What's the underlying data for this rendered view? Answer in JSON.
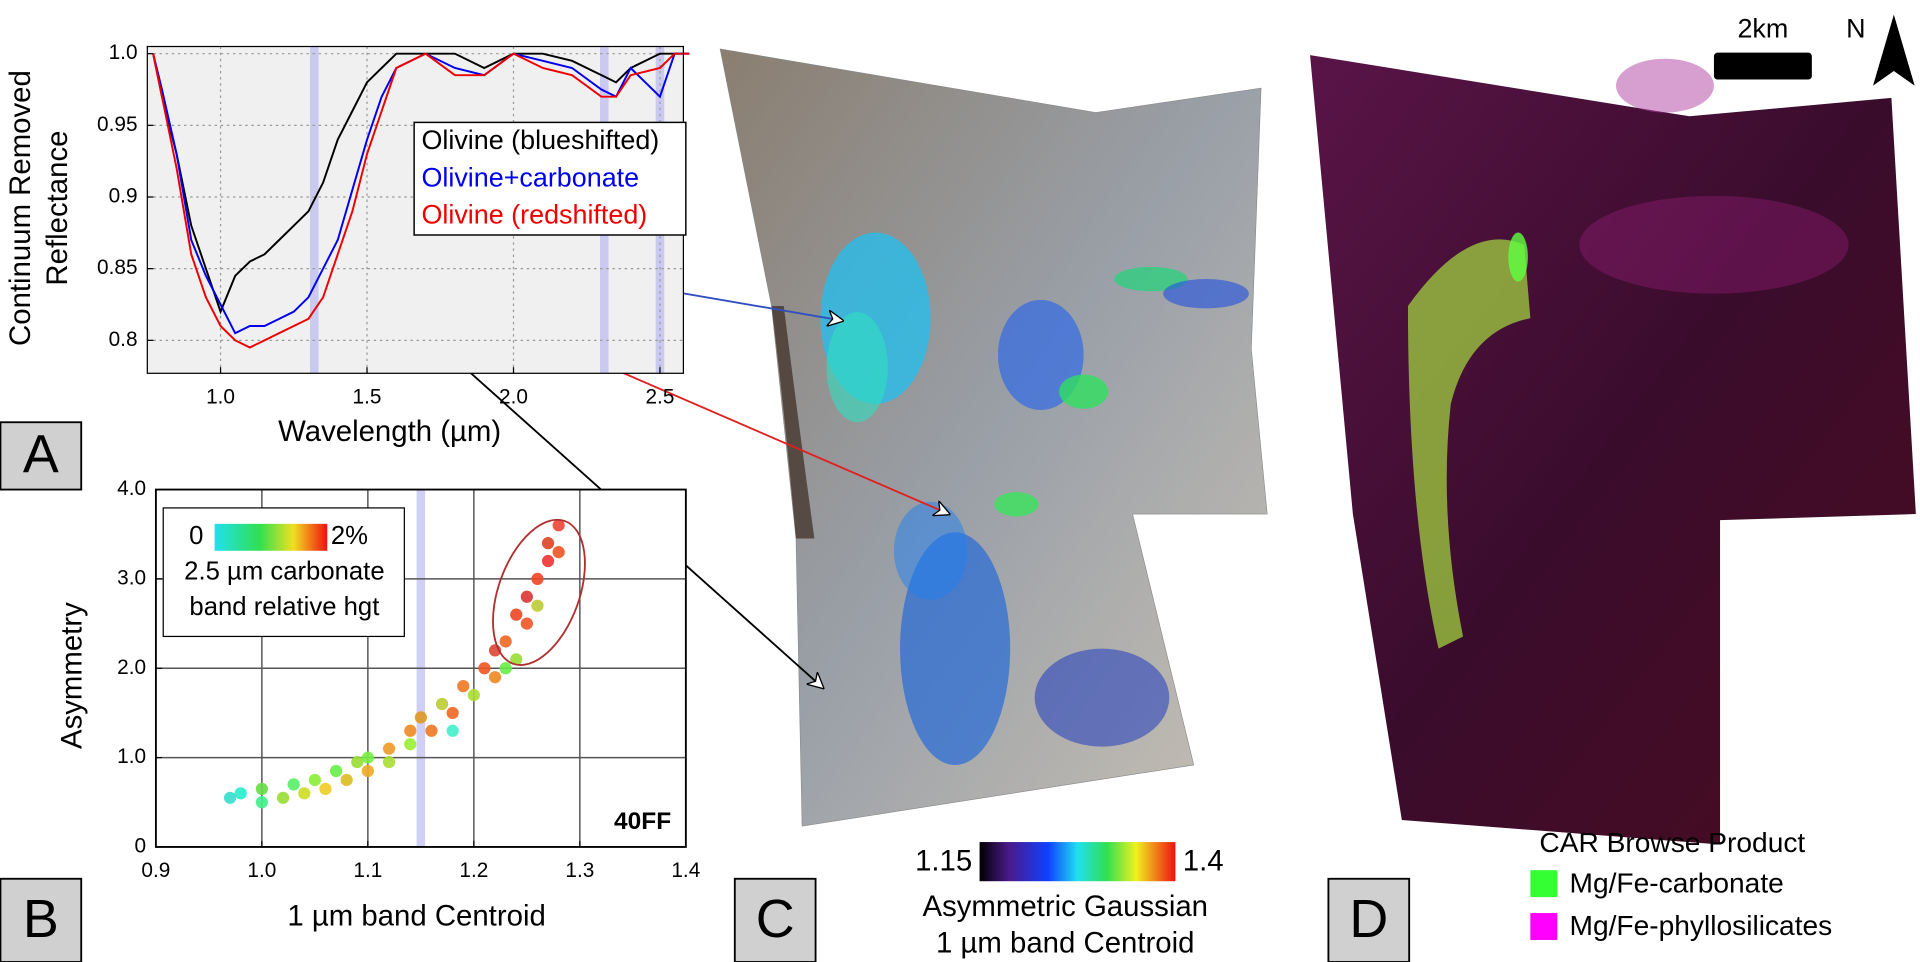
{
  "chart_data": [
    {
      "type": "line",
      "panel_label": "A",
      "ylabel_lines": [
        "Continuum Removed",
        "Reflectance"
      ],
      "xlabel": "Wavelength (µm)",
      "xlim": [
        0.75,
        2.58
      ],
      "xticks": [
        {
          "value": 1,
          "label": "1.0"
        },
        1.5,
        {
          "value": 2,
          "label": "2.0"
        },
        2.5
      ],
      "ylim": [
        0.777,
        1.005
      ],
      "yticks": [
        0.8,
        0.85,
        0.9,
        0.95,
        {
          "value": 1,
          "label": "1.0"
        }
      ],
      "grid": true,
      "bands": [
        1.32,
        2.31,
        2.5
      ],
      "x": [
        0.77,
        0.8,
        0.85,
        0.9,
        0.95,
        1.0,
        1.05,
        1.1,
        1.15,
        1.2,
        1.25,
        1.3,
        1.35,
        1.4,
        1.45,
        1.5,
        1.55,
        1.6,
        1.7,
        1.8,
        1.9,
        2.0,
        2.1,
        2.2,
        2.3,
        2.35,
        2.4,
        2.5,
        2.55,
        2.6
      ],
      "series": [
        {
          "name": "Olivine (blueshifted)",
          "color": "#000000",
          "values": [
            1.0,
            0.97,
            0.93,
            0.88,
            0.85,
            0.82,
            0.845,
            0.855,
            0.86,
            0.87,
            0.88,
            0.89,
            0.91,
            0.94,
            0.96,
            0.98,
            0.99,
            1.0,
            1.0,
            1.0,
            0.99,
            1.0,
            1.0,
            0.995,
            0.985,
            0.98,
            0.99,
            1.0,
            1.0,
            1.0
          ]
        },
        {
          "name": "Olivine+carbonate",
          "color": "#0000ee",
          "values": [
            1.0,
            0.975,
            0.93,
            0.87,
            0.845,
            0.825,
            0.805,
            0.81,
            0.81,
            0.815,
            0.82,
            0.83,
            0.85,
            0.87,
            0.905,
            0.94,
            0.97,
            0.99,
            1.0,
            0.99,
            0.985,
            1.0,
            0.995,
            0.99,
            0.975,
            0.97,
            0.99,
            0.97,
            1.0,
            1.0
          ]
        },
        {
          "name": "Olivine (redshifted)",
          "color": "#ee0000",
          "values": [
            1.0,
            0.97,
            0.92,
            0.86,
            0.83,
            0.81,
            0.8,
            0.795,
            0.8,
            0.805,
            0.81,
            0.815,
            0.83,
            0.86,
            0.89,
            0.93,
            0.96,
            0.99,
            1.0,
            0.985,
            0.985,
            1.0,
            0.99,
            0.985,
            0.97,
            0.97,
            0.985,
            0.99,
            1.0,
            1.0
          ]
        }
      ]
    },
    {
      "type": "scatter",
      "panel_label": "B",
      "xlabel": "1 µm band Centroid",
      "ylabel": "Asymmetry",
      "annotation": "40FF",
      "colorbar_min": "0",
      "colorbar_max": "2%",
      "colorbar_title_lines": [
        "2.5 µm carbonate",
        "band relative hgt"
      ],
      "xlim": [
        0.9,
        1.4
      ],
      "xticks": [
        0.9,
        {
          "value": 1,
          "label": "1.0"
        },
        1.1,
        1.2,
        1.3,
        1.4
      ],
      "ylim": [
        0,
        4
      ],
      "yticks": [
        0,
        {
          "value": 1,
          "label": "1.0"
        },
        {
          "value": 2,
          "label": "2.0"
        },
        {
          "value": 3,
          "label": "3.0"
        },
        {
          "value": 4,
          "label": "4.0"
        }
      ],
      "grid": true,
      "bands": [
        1.15
      ],
      "x": [
        0.97,
        0.98,
        1.0,
        1.0,
        1.02,
        1.03,
        1.04,
        1.05,
        1.06,
        1.07,
        1.08,
        1.09,
        1.1,
        1.1,
        1.12,
        1.12,
        1.14,
        1.14,
        1.15,
        1.16,
        1.17,
        1.18,
        1.19,
        1.2,
        1.21,
        1.22,
        1.22,
        1.23,
        1.24,
        1.24,
        1.25,
        1.25,
        1.26,
        1.26,
        1.27,
        1.27,
        1.28,
        1.28,
        1.23,
        1.18
      ],
      "values": [
        0.55,
        0.6,
        0.5,
        0.65,
        0.55,
        0.7,
        0.6,
        0.75,
        0.65,
        0.85,
        0.75,
        0.95,
        0.85,
        1.0,
        1.1,
        0.95,
        1.3,
        1.15,
        1.45,
        1.3,
        1.6,
        1.5,
        1.8,
        1.7,
        2.0,
        1.9,
        2.2,
        2.3,
        2.1,
        2.6,
        2.5,
        2.8,
        3.0,
        2.7,
        3.2,
        3.4,
        3.6,
        3.3,
        2.0,
        1.3
      ],
      "colors": [
        "#33ddcc",
        "#22eecc",
        "#44ee88",
        "#66dd44",
        "#99dd33",
        "#55ee66",
        "#ccdd22",
        "#88ee33",
        "#eecc22",
        "#66ee44",
        "#ddbb22",
        "#99dd33",
        "#eeaa22",
        "#77ee44",
        "#ee9922",
        "#aadd33",
        "#ee8822",
        "#99ee33",
        "#dd9922",
        "#ee7722",
        "#bbcc33",
        "#ee6622",
        "#ee7722",
        "#aadd33",
        "#ee5522",
        "#ee8822",
        "#dd4433",
        "#ee6622",
        "#99dd33",
        "#ee4422",
        "#ee5522",
        "#dd3333",
        "#ee4422",
        "#bbcc33",
        "#ee3333",
        "#dd4422",
        "#ee4433",
        "#ee5522",
        "#66ee44",
        "#44eecc"
      ]
    },
    {
      "type": "map",
      "panel_label": "C",
      "colorbar_min": "1.15",
      "colorbar_max": "1.4",
      "caption_lines": [
        "Asymmetric Gaussian",
        "1 µm band Centroid"
      ]
    },
    {
      "type": "map",
      "panel_label": "D",
      "scale_label": "2km",
      "north_label": "N",
      "legend_title": "CAR Browse Product",
      "series": [
        {
          "name": "Mg/Fe-carbonate",
          "color": "#33ff33"
        },
        {
          "name": "Mg/Fe-phyllosilicates",
          "color": "#ff00ff"
        }
      ]
    }
  ]
}
